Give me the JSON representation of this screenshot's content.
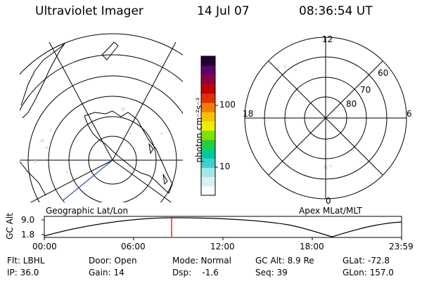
{
  "header": {
    "instrument": "Ultraviolet Imager",
    "date": "14 Jul 07",
    "time": "08:36:54 UT"
  },
  "colorbar": {
    "unit": "photon cm⁻²s⁻¹",
    "tick_labels": [
      "100",
      "10"
    ],
    "colors": [
      "#ffffff",
      "#d8f0f0",
      "#a0e8e8",
      "#40d0d0",
      "#00c8a0",
      "#20d040",
      "#80e000",
      "#e8f000",
      "#f8c000",
      "#f08000",
      "#e03000",
      "#c00000",
      "#900040",
      "#600070",
      "#200030"
    ]
  },
  "map_left": {
    "label": "Geographic Lat/Lon"
  },
  "map_right": {
    "label": "Apex MLat/MLT",
    "mlt_labels": {
      "top": "12",
      "right": "6",
      "bottom": "0",
      "left": "18"
    },
    "lat_labels": [
      "60",
      "70",
      "80"
    ]
  },
  "altitude_plot": {
    "ylabel": "GC Alt",
    "y_ticks": [
      "9.0",
      "1.8"
    ],
    "x_ticks": [
      "00:00",
      "06:00",
      "12:00",
      "18:00",
      "23:59"
    ],
    "current_time_marker": "08:36:54",
    "marker_color": "#cc0000"
  },
  "status": {
    "flt_label": "Flt: LBHL",
    "ip_label": "IP: 36.0",
    "door_label": "Door: Open",
    "gain_label": "Gain: 14",
    "mode_label": "Mode: Normal",
    "dsp_label": "Dsp:    -1.6",
    "gcalt_label": "GC Alt: 8.9 Re",
    "seq_label": "Seq: 39",
    "glat_label": "GLat: -72.8",
    "glon_label": "GLon: 157.0"
  }
}
